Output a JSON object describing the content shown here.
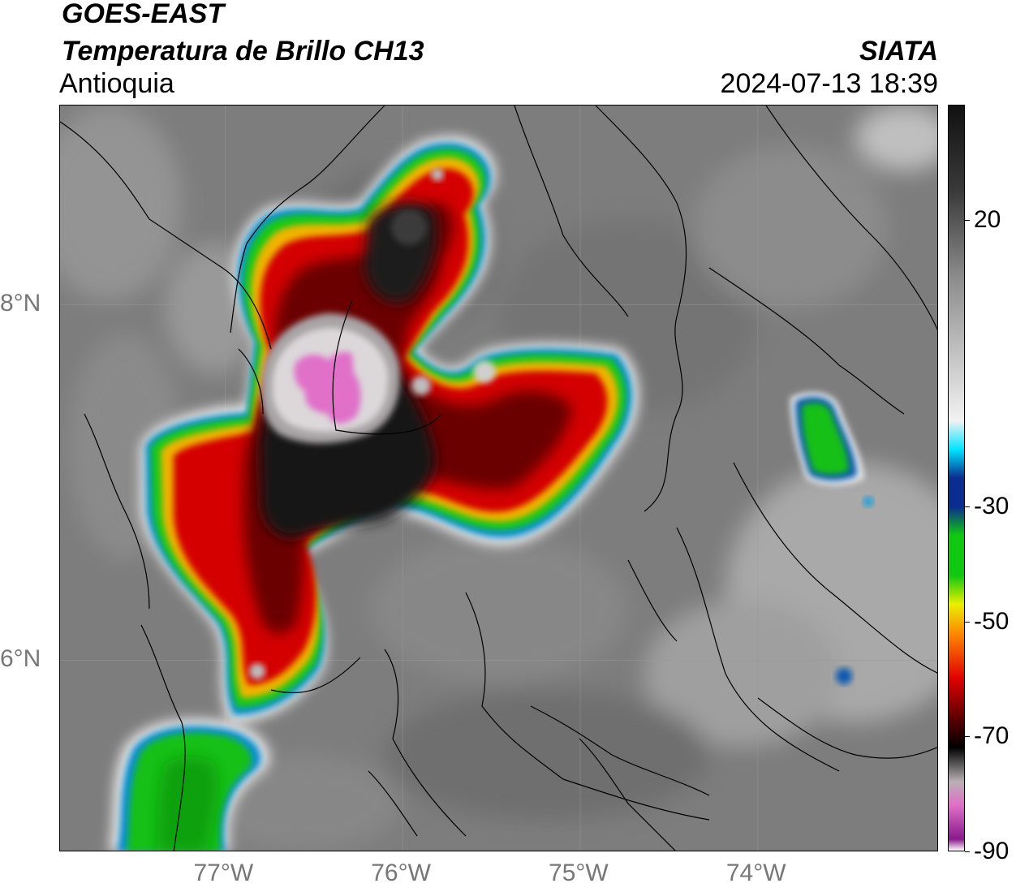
{
  "header": {
    "satellite": "GOES-EAST",
    "product": "Temperatura de Brillo CH13",
    "region": "Antioquia",
    "organization": "SIATA",
    "timestamp": "2024-07-13 18:39"
  },
  "map": {
    "lon_range": [
      -77.93,
      -72.98
    ],
    "lat_range": [
      4.92,
      9.12
    ],
    "lon_ticks": [
      {
        "value": -77,
        "label": "77°W"
      },
      {
        "value": -76,
        "label": "76°W"
      },
      {
        "value": -75,
        "label": "75°W"
      },
      {
        "value": -74,
        "label": "74°W"
      }
    ],
    "lat_ticks": [
      {
        "value": 8,
        "label": "8°N"
      },
      {
        "value": 6,
        "label": "6°N"
      }
    ],
    "gridlines": true
  },
  "colorbar": {
    "range": [
      -90,
      40
    ],
    "ticks": [
      {
        "value": 20,
        "label": "20"
      },
      {
        "value": -30,
        "label": "-30"
      },
      {
        "value": -50,
        "label": "-50"
      },
      {
        "value": -70,
        "label": "-70"
      },
      {
        "value": -90,
        "label": "-90"
      }
    ],
    "colors": {
      "warm_top": "#111111",
      "warm_mid": "#8c8c8c",
      "warm_low": "#f2f2f2",
      "cyan": "#00e5ff",
      "blue": "#0a2d8f",
      "green": "#10c810",
      "yellow": "#e8f000",
      "orange": "#ff8a00",
      "red": "#e00000",
      "darkred": "#5a0000",
      "black": "#000000",
      "gray_cold": "#b8b0b4",
      "pink": "#e070c8",
      "purple": "#8a1a8a"
    }
  }
}
